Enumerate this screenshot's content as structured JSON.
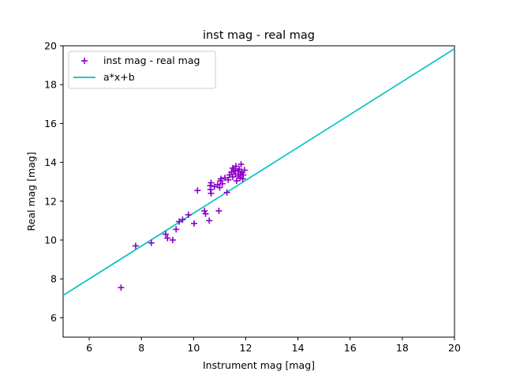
{
  "chart_data": {
    "type": "scatter",
    "title": "inst mag - real mag",
    "xlabel": "Instrument mag [mag]",
    "ylabel": "Real mag [mag]",
    "xlim": [
      5,
      20
    ],
    "ylim": [
      5,
      20
    ],
    "xticks": [
      6,
      8,
      10,
      12,
      14,
      16,
      18,
      20
    ],
    "yticks": [
      6,
      8,
      10,
      12,
      14,
      16,
      18,
      20
    ],
    "grid": false,
    "legend_position": "top-left",
    "series": [
      {
        "name": "inst mag - real mag",
        "kind": "scatter",
        "marker": "+",
        "color": "#8b00c8",
        "x": [
          7.22,
          7.78,
          8.38,
          8.93,
          9.0,
          9.2,
          9.33,
          9.45,
          9.58,
          9.8,
          10.02,
          10.15,
          10.42,
          10.46,
          10.6,
          10.65,
          10.67,
          10.64,
          10.67,
          10.8,
          10.92,
          10.97,
          11.0,
          11.03,
          11.05,
          11.1,
          11.2,
          11.28,
          11.33,
          11.38,
          11.45,
          11.5,
          11.5,
          11.55,
          11.6,
          11.62,
          11.65,
          11.7,
          11.72,
          11.75,
          11.78,
          11.8,
          11.82,
          11.85,
          11.88,
          11.9,
          11.95
        ],
        "y": [
          7.55,
          9.7,
          9.85,
          10.3,
          10.1,
          10.0,
          10.55,
          10.95,
          11.05,
          11.3,
          10.85,
          12.55,
          11.5,
          11.35,
          11.0,
          12.6,
          12.4,
          12.8,
          12.95,
          12.75,
          12.85,
          11.5,
          12.7,
          13.05,
          13.15,
          12.9,
          13.2,
          12.45,
          13.1,
          13.35,
          13.5,
          13.7,
          13.25,
          13.6,
          13.4,
          13.8,
          13.05,
          13.55,
          13.3,
          13.65,
          13.2,
          13.4,
          13.9,
          13.5,
          13.15,
          13.35,
          13.6
        ]
      },
      {
        "name": "a*x+b",
        "kind": "line",
        "color": "#00bfbf",
        "x": [
          5,
          20
        ],
        "y": [
          7.15,
          19.85
        ]
      }
    ]
  }
}
